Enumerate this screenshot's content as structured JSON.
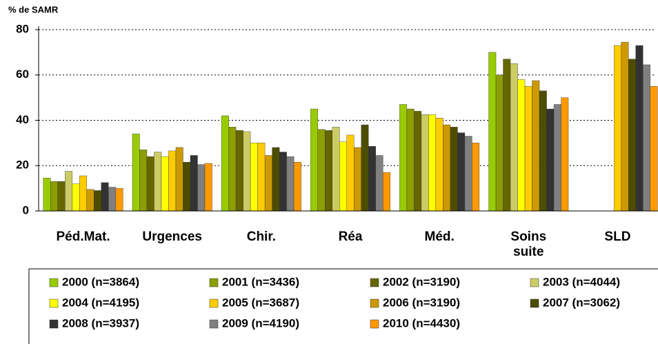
{
  "chart_data": {
    "type": "bar",
    "y_label": "% de SAMR",
    "categories": [
      "Péd.Mat.",
      "Urgences",
      "Chir.",
      "Réa",
      "Méd.",
      "Soins suite",
      "SLD"
    ],
    "series": [
      {
        "name": "2000 (n=3864)",
        "color": "#99cc00",
        "values": [
          14.5,
          34,
          42,
          45,
          47,
          70,
          null
        ]
      },
      {
        "name": "2001 (n=3436)",
        "color": "#8c9e00",
        "values": [
          13,
          27,
          37,
          36,
          45,
          60,
          null
        ]
      },
      {
        "name": "2002 (n=3190)",
        "color": "#666600",
        "values": [
          13,
          24,
          35.5,
          35.5,
          44,
          67,
          null
        ]
      },
      {
        "name": "2003 (n=4044)",
        "color": "#cccc66",
        "values": [
          17.5,
          26,
          35,
          37,
          42.5,
          65,
          null
        ]
      },
      {
        "name": "2004 (n=4195)",
        "color": "#ffff00",
        "values": [
          12,
          24,
          30,
          30.5,
          42.5,
          58,
          null
        ]
      },
      {
        "name": "2005 (n=3687)",
        "color": "#ffcc00",
        "values": [
          15.5,
          26.5,
          30,
          33.5,
          41,
          55,
          73
        ]
      },
      {
        "name": "2006 (n=3190)",
        "color": "#cc9900",
        "values": [
          9.5,
          28,
          24.5,
          28,
          38,
          57.5,
          74.5
        ]
      },
      {
        "name": "2007 (n=3062)",
        "color": "#4d4d00",
        "values": [
          9,
          21.5,
          28,
          38,
          37,
          53,
          67
        ]
      },
      {
        "name": "2008 (n=3937)",
        "color": "#333333",
        "values": [
          12.5,
          24.5,
          26,
          28.5,
          34.5,
          45,
          73
        ]
      },
      {
        "name": "2009 (n=4190)",
        "color": "#808080",
        "values": [
          10.5,
          20.5,
          24,
          24.5,
          33,
          47,
          64.5
        ]
      },
      {
        "name": "2010 (n=4430)",
        "color": "#ff9900",
        "values": [
          10,
          21,
          21.5,
          17,
          30,
          50,
          55
        ]
      }
    ],
    "ylim": [
      0,
      80
    ],
    "yticks": [
      0,
      20,
      40,
      60,
      80
    ],
    "grid": true
  }
}
